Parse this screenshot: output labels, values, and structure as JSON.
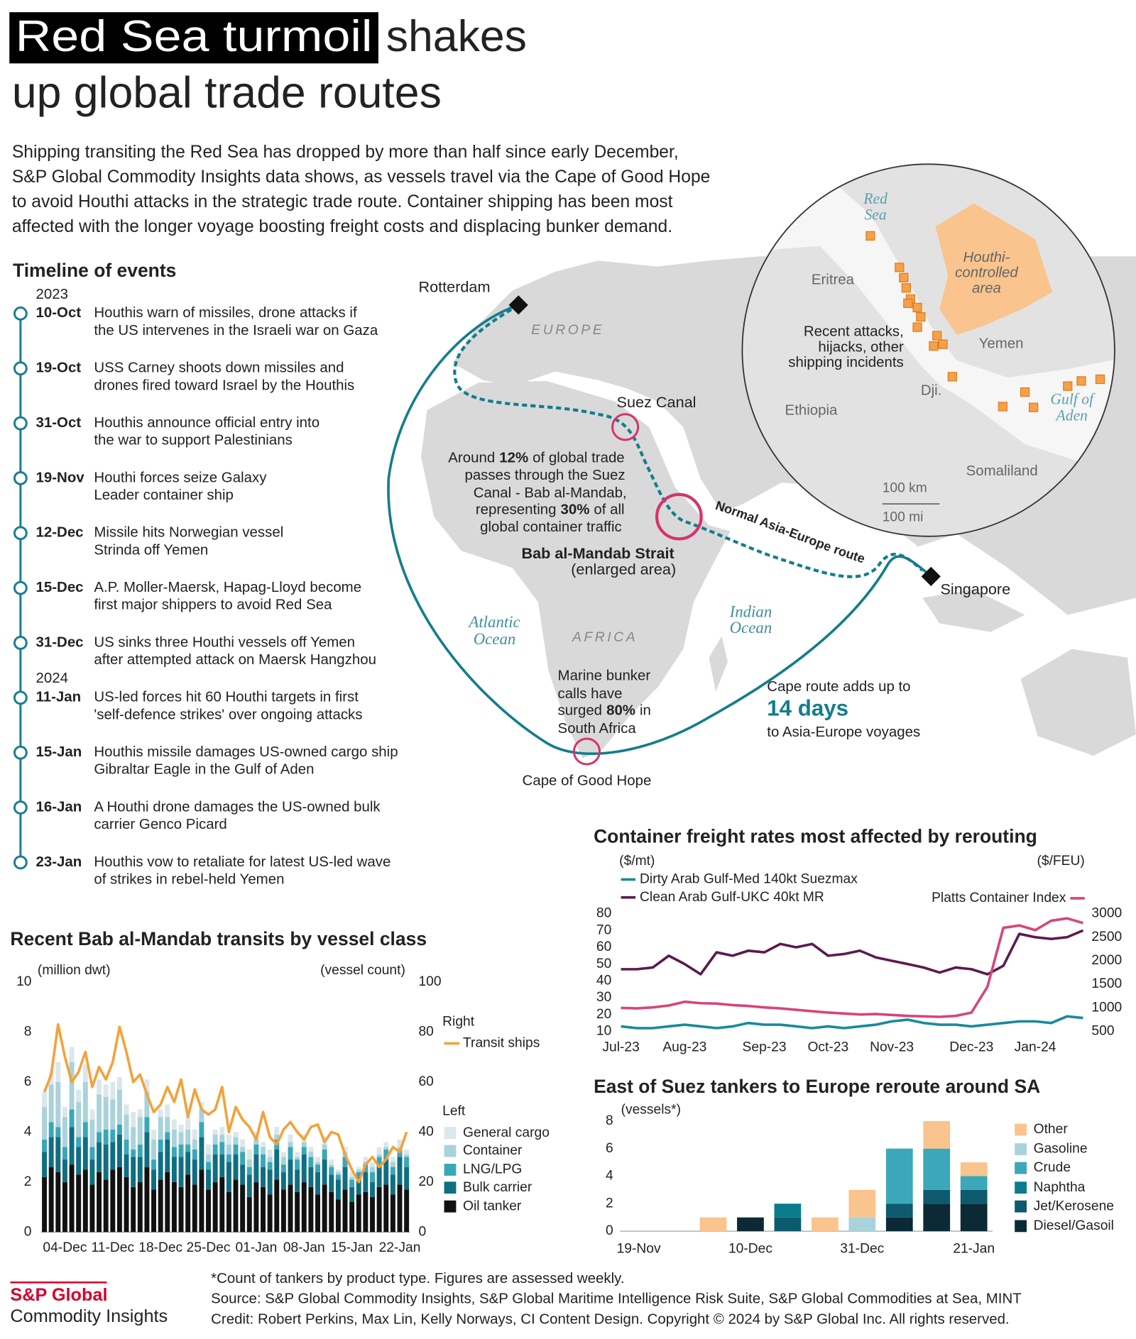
{
  "header": {
    "title_highlight": "Red Sea turmoil",
    "title_rest": "shakes",
    "title_line2": "up global trade routes",
    "intro": [
      "Shipping transiting the Red Sea has dropped by more than half since early December,",
      "S&P Global Commodity Insights data shows, as vessels travel via the Cape of Good Hope",
      "to avoid Houthi attacks in the strategic trade route.  Container shipping has been most",
      "affected with the longer voyage boosting freight costs and displacing bunker demand."
    ]
  },
  "timeline": {
    "title": "Timeline of events",
    "events": [
      {
        "year": "2023",
        "date": "10-Oct",
        "lines": [
          "Houthis warn of missiles, drone attacks if",
          "the US intervenes in the Israeli war on Gaza"
        ]
      },
      {
        "date": "19-Oct",
        "lines": [
          "USS Carney shoots down missiles and",
          "drones fired toward Israel by the Houthis"
        ]
      },
      {
        "date": "31-Oct",
        "lines": [
          "Houthis announce official entry into",
          "the war to support Palestinians"
        ]
      },
      {
        "date": "19-Nov",
        "lines": [
          "Houthi forces seize Galaxy",
          "Leader container ship"
        ]
      },
      {
        "date": "12-Dec",
        "lines": [
          "Missile hits Norwegian vessel",
          "Strinda off Yemen"
        ]
      },
      {
        "date": "15-Dec",
        "lines": [
          "A.P. Moller-Maersk, Hapag-Lloyd become",
          "first major shippers to avoid Red Sea"
        ]
      },
      {
        "date": "31-Dec",
        "lines": [
          "US sinks three Houthi vessels off Yemen",
          "after attempted attack on Maersk Hangzhou"
        ]
      },
      {
        "year": "2024",
        "date": "11-Jan",
        "lines": [
          "US-led forces hit 60 Houthi targets in first",
          "'self-defence strikes' over ongoing attacks"
        ]
      },
      {
        "date": "15-Jan",
        "lines": [
          "Houthis missile damages US-owned cargo ship",
          "Gibraltar Eagle in the Gulf of Aden"
        ]
      },
      {
        "date": "16-Jan",
        "lines": [
          "A Houthi drone damages the US-owned bulk",
          "carrier Genco Picard"
        ]
      },
      {
        "date": "23-Jan",
        "lines": [
          "Houthis vow to retaliate for latest US-led wave",
          "of strikes in rebel-held Yemen"
        ]
      }
    ]
  },
  "map": {
    "rotterdam": "Rotterdam",
    "europe": "EUROPE",
    "suez": "Suez Canal",
    "trade_note": [
      "Around",
      "12%",
      "of global trade",
      "passes through the Suez",
      "Canal - Bab al-Mandab,",
      "representing",
      "30%",
      "of all",
      "global container traffic"
    ],
    "bab": [
      "Bab al-Mandab Strait",
      "(enlarged area)"
    ],
    "atlantic": [
      "Atlantic",
      "Ocean"
    ],
    "africa": "AFRICA",
    "indian": [
      "Indian",
      "Ocean"
    ],
    "route": "Normal Asia-Europe route",
    "singapore": "Singapore",
    "bunker_note": [
      "Marine bunker",
      "calls have",
      "surged",
      "80%",
      "in",
      "South Africa"
    ],
    "cape_note": [
      "Cape route adds up to",
      "14 days",
      "to Asia-Europe voyages"
    ],
    "cape": "Cape of Good Hope",
    "inset": {
      "red_sea": [
        "Red",
        "Sea"
      ],
      "eritrea": "Eritrea",
      "houthi": [
        "Houthi-",
        "controlled",
        "area"
      ],
      "yemen": "Yemen",
      "attacks": [
        "Recent attacks,",
        "hijacks, other",
        "shipping incidents"
      ],
      "ethiopia": "Ethiopia",
      "djibouti": "Dji.",
      "gulf": [
        "Gulf of",
        "Aden"
      ],
      "somaliland": "Somaliland",
      "scale_km": "100 km",
      "scale_mi": "100 mi"
    }
  },
  "chart_data": [
    {
      "type": "bar",
      "stacked": true,
      "title": "Recent Bab al-Mandab transits by vessel class",
      "y_label": "(million dwt)",
      "y2_label": "(vessel count)",
      "legend_titles": [
        "Right",
        "Left"
      ],
      "categories": [
        null,
        null,
        null,
        "04-Dec",
        null,
        null,
        null,
        null,
        null,
        null,
        "11-Dec",
        null,
        null,
        null,
        null,
        null,
        null,
        "18-Dec",
        null,
        null,
        null,
        null,
        null,
        null,
        "25-Dec",
        null,
        null,
        null,
        null,
        null,
        null,
        "01-Jan",
        null,
        null,
        null,
        null,
        null,
        null,
        "08-Jan",
        null,
        null,
        null,
        null,
        null,
        null,
        "15-Jan",
        null,
        null,
        null,
        null,
        null,
        null,
        "22-Jan",
        null
      ],
      "ylim": [
        0,
        10
      ],
      "yticks": [
        0,
        2,
        4,
        6,
        8,
        10
      ],
      "y2lim": [
        0,
        100
      ],
      "y2ticks": [
        0,
        20,
        40,
        60,
        80,
        100
      ],
      "series": [
        {
          "name": "Oil tanker",
          "color": "#111111",
          "values": [
            2.2,
            2.6,
            2.4,
            2.0,
            2.7,
            2.3,
            2.5,
            1.9,
            2.4,
            2.1,
            2.5,
            2.6,
            2.2,
            1.8,
            2.0,
            2.6,
            1.7,
            2.1,
            2.4,
            2.0,
            1.8,
            2.3,
            1.9,
            2.5,
            1.7,
            2.0,
            2.2,
            1.6,
            2.1,
            1.9,
            1.4,
            2.0,
            1.8,
            1.5,
            2.1,
            1.7,
            1.9,
            1.6,
            2.0,
            1.8,
            1.5,
            1.9,
            1.6,
            1.3,
            1.7,
            1.2,
            1.5,
            1.6,
            1.4,
            1.8,
            1.9,
            1.5,
            1.9,
            1.7
          ]
        },
        {
          "name": "Bulk carrier",
          "color": "#0f6e82",
          "values": [
            1.0,
            1.2,
            1.4,
            0.9,
            1.5,
            1.1,
            1.3,
            1.0,
            1.2,
            1.4,
            1.1,
            1.3,
            0.9,
            1.2,
            1.0,
            1.4,
            0.8,
            1.1,
            1.3,
            1.0,
            1.2,
            0.9,
            1.0,
            1.3,
            0.8,
            1.1,
            0.9,
            1.2,
            1.0,
            0.8,
            0.9,
            1.1,
            0.8,
            1.0,
            1.2,
            0.7,
            1.0,
            0.9,
            1.1,
            0.8,
            0.9,
            1.0,
            0.7,
            0.8,
            0.9,
            0.6,
            0.7,
            0.8,
            0.6,
            0.9,
            1.0,
            0.8,
            1.1,
            0.9
          ]
        },
        {
          "name": "LNG/LPG",
          "color": "#3aa7b9",
          "values": [
            0.5,
            0.6,
            0.4,
            0.5,
            0.7,
            0.4,
            0.6,
            0.5,
            0.4,
            0.6,
            0.5,
            0.4,
            0.6,
            0.3,
            0.5,
            0.6,
            0.4,
            0.5,
            0.3,
            0.4,
            0.5,
            0.3,
            0.4,
            0.6,
            0.3,
            0.4,
            0.5,
            0.3,
            0.4,
            0.5,
            0.3,
            0.4,
            0.5,
            0.3,
            0.4,
            0.3,
            0.5,
            0.4,
            0.3,
            0.4,
            0.3,
            0.4,
            0.3,
            0.2,
            0.4,
            0.3,
            0.2,
            0.3,
            0.4,
            0.3,
            0.4,
            0.3,
            0.3,
            0.4
          ]
        },
        {
          "name": "Container",
          "color": "#a9d2dc",
          "values": [
            1.3,
            1.5,
            1.8,
            1.2,
            1.9,
            1.4,
            1.6,
            1.1,
            1.5,
            1.3,
            1.2,
            1.4,
            1.0,
            0.9,
            1.1,
            1.0,
            0.8,
            0.9,
            0.6,
            0.7,
            0.5,
            0.6,
            0.4,
            0.5,
            0.3,
            0.4,
            0.3,
            0.4,
            0.3,
            0.2,
            0.3,
            0.2,
            0.3,
            0.2,
            0.2,
            0.3,
            0.2,
            0.1,
            0.2,
            0.2,
            0.1,
            0.2,
            0.1,
            0.1,
            0.2,
            0.1,
            0.1,
            0.1,
            0.2,
            0.1,
            0.1,
            0.2,
            0.1,
            0.1
          ]
        },
        {
          "name": "General cargo",
          "color": "#dbe7ea",
          "values": [
            0.6,
            0.5,
            0.8,
            0.4,
            0.6,
            0.5,
            0.7,
            0.4,
            0.6,
            0.5,
            0.7,
            0.5,
            0.4,
            0.6,
            0.3,
            0.5,
            0.4,
            0.3,
            0.5,
            0.4,
            0.3,
            0.5,
            0.4,
            0.3,
            0.4,
            0.2,
            0.3,
            0.4,
            0.2,
            0.3,
            0.4,
            0.3,
            0.2,
            0.3,
            0.3,
            0.2,
            0.3,
            0.2,
            0.3,
            0.2,
            0.2,
            0.3,
            0.2,
            0.1,
            0.2,
            0.2,
            0.1,
            0.2,
            0.2,
            0.3,
            0.2,
            0.2,
            0.3,
            0.2
          ]
        },
        {
          "name": "Transit ships",
          "type": "line",
          "axis": "y2",
          "color": "#f2a23c",
          "values": [
            56,
            63,
            83,
            70,
            60,
            64,
            72,
            58,
            66,
            61,
            68,
            82,
            72,
            60,
            63,
            55,
            48,
            51,
            58,
            52,
            61,
            46,
            57,
            49,
            47,
            49,
            58,
            40,
            50,
            45,
            42,
            37,
            48,
            38,
            35,
            41,
            44,
            40,
            37,
            42,
            43,
            36,
            40,
            39,
            31,
            25,
            20,
            27,
            30,
            26,
            29,
            34,
            32,
            40
          ]
        }
      ]
    },
    {
      "type": "line",
      "title": "Container freight rates most affected by rerouting",
      "y_label": "($/mt)",
      "y2_label": "($/FEU)",
      "categories": [
        "Jul-23",
        null,
        null,
        null,
        "Aug-23",
        null,
        null,
        null,
        null,
        "Sep-23",
        null,
        null,
        null,
        "Oct-23",
        null,
        null,
        null,
        "Nov-23",
        null,
        null,
        null,
        null,
        "Dec-23",
        null,
        null,
        null,
        "Jan-24",
        null,
        null,
        null
      ],
      "ylim": [
        10,
        80
      ],
      "yticks": [
        10,
        20,
        30,
        40,
        50,
        60,
        70,
        80
      ],
      "y2lim": [
        500,
        3000
      ],
      "y2ticks": [
        500,
        1000,
        1500,
        2000,
        2500,
        3000
      ],
      "series": [
        {
          "name": "Dirty Arab Gulf-Med 140kt Suezmax",
          "color": "#1a8a9a",
          "values": [
            13,
            12,
            12,
            13,
            14,
            13,
            12,
            13,
            15,
            14,
            14,
            13,
            12,
            13,
            12,
            13,
            14,
            16,
            17,
            15,
            14,
            14,
            13,
            14,
            15,
            16,
            16,
            15,
            19,
            18
          ]
        },
        {
          "name": "Clean Arab Gulf-UKC 40kt MR",
          "color": "#5c1a4e",
          "values": [
            47,
            47,
            48,
            55,
            50,
            44,
            57,
            55,
            58,
            57,
            62,
            60,
            62,
            55,
            56,
            58,
            54,
            52,
            50,
            48,
            45,
            48,
            47,
            44,
            49,
            68,
            66,
            65,
            66,
            70
          ]
        },
        {
          "name": "Platts Container Index",
          "axis": "y2",
          "color": "#d6457a",
          "values": [
            1000,
            990,
            1010,
            1050,
            1130,
            1100,
            1090,
            1060,
            1040,
            1010,
            990,
            960,
            930,
            900,
            880,
            860,
            870,
            850,
            830,
            820,
            810,
            830,
            900,
            1450,
            2700,
            2750,
            2650,
            2850,
            2900,
            2800
          ]
        }
      ]
    },
    {
      "type": "bar",
      "stacked": true,
      "title": "East of Suez tankers to Europe reroute around SA",
      "y_label": "(vessels*)",
      "categories": [
        "19-Nov",
        null,
        null,
        "10-Dec",
        null,
        null,
        "31-Dec",
        null,
        null,
        "21-Jan"
      ],
      "ylim": [
        0,
        8
      ],
      "yticks": [
        0,
        2,
        4,
        6,
        8
      ],
      "series": [
        {
          "name": "Diesel/Gasoil",
          "color": "#0b2a36",
          "values": [
            0,
            0,
            0,
            1,
            0,
            0,
            0,
            1,
            2,
            2
          ]
        },
        {
          "name": "Jet/Kerosene",
          "color": "#0d5a6e",
          "values": [
            0,
            0,
            0,
            0,
            1,
            0,
            0,
            1,
            1,
            1
          ]
        },
        {
          "name": "Naphtha",
          "color": "#0a7c8c",
          "values": [
            0,
            0,
            0,
            0,
            1,
            0,
            0,
            0,
            0,
            0
          ]
        },
        {
          "name": "Crude",
          "color": "#3aa8b8",
          "values": [
            0,
            0,
            0,
            0,
            0,
            0,
            0,
            4,
            3,
            1
          ]
        },
        {
          "name": "Gasoline",
          "color": "#a9d3dc",
          "values": [
            0,
            0,
            0,
            0,
            0,
            0,
            1,
            0,
            0,
            0
          ]
        },
        {
          "name": "Other",
          "color": "#f9c48d",
          "values": [
            0,
            0,
            1,
            0,
            0,
            1,
            2,
            0,
            2,
            1
          ]
        }
      ]
    }
  ],
  "footer": {
    "logo": [
      "S&P Global",
      "Commodity Insights"
    ],
    "notes": [
      "*Count of tankers by product type. Figures are assessed weekly.",
      "Source: S&P Global Commodity Insights, S&P Global Maritime Intelligence Risk Suite, S&P Global Commodities at Sea, MINT",
      "Credit: Robert Perkins, Max Lin, Kelly Norways, CI Content Design.  Copyright © 2024 by S&P Global Inc.  All rights reserved."
    ]
  }
}
